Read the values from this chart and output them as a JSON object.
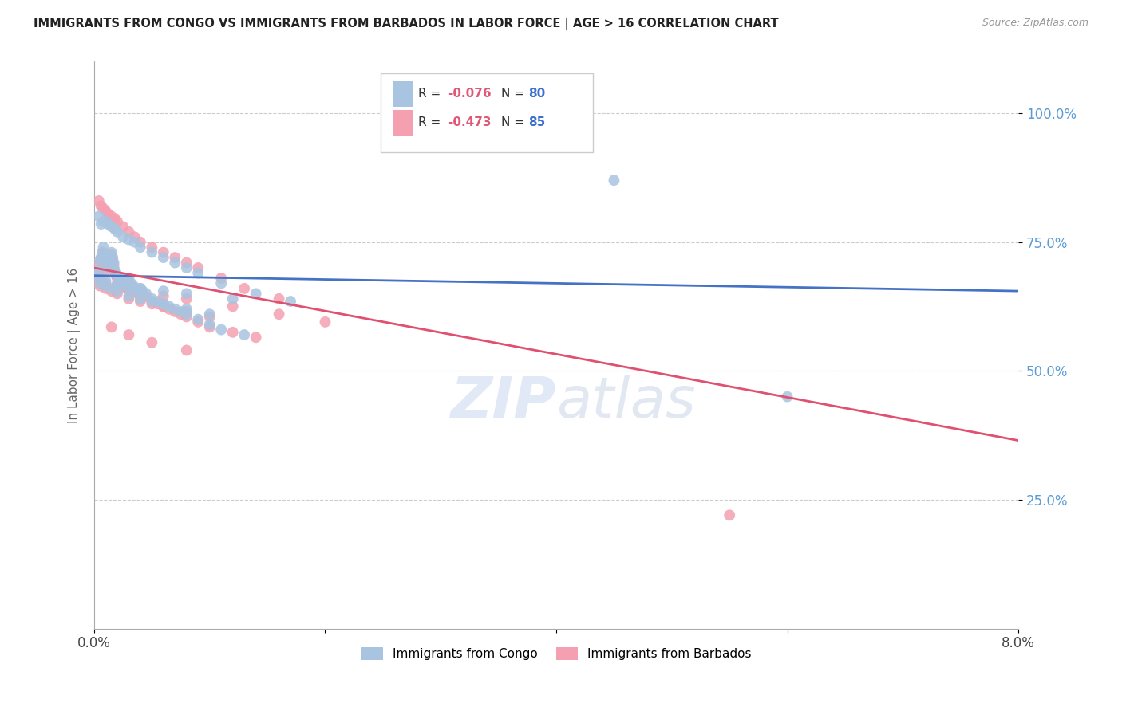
{
  "title": "IMMIGRANTS FROM CONGO VS IMMIGRANTS FROM BARBADOS IN LABOR FORCE | AGE > 16 CORRELATION CHART",
  "source": "Source: ZipAtlas.com",
  "ylabel": "In Labor Force | Age > 16",
  "yaxis_labels": [
    "25.0%",
    "50.0%",
    "75.0%",
    "100.0%"
  ],
  "yaxis_values": [
    0.25,
    0.5,
    0.75,
    1.0
  ],
  "xlim": [
    0.0,
    0.08
  ],
  "ylim": [
    0.0,
    1.1
  ],
  "congo_R": -0.076,
  "congo_N": 80,
  "barbados_R": -0.473,
  "barbados_N": 85,
  "congo_color": "#a8c4e0",
  "barbados_color": "#f4a0b0",
  "congo_line_color": "#4472c4",
  "barbados_line_color": "#e05070",
  "watermark_zip": "ZIP",
  "watermark_atlas": "atlas",
  "legend_label_congo": "Immigrants from Congo",
  "legend_label_barbados": "Immigrants from Barbados",
  "congo_line_x0": 0.0,
  "congo_line_x1": 0.08,
  "congo_line_y0": 0.685,
  "congo_line_y1": 0.655,
  "barbados_line_x0": 0.0,
  "barbados_line_x1": 0.08,
  "barbados_line_y0": 0.7,
  "barbados_line_y1": 0.365,
  "congo_x": [
    0.0003,
    0.0005,
    0.0006,
    0.0007,
    0.0008,
    0.0009,
    0.001,
    0.0011,
    0.0012,
    0.0013,
    0.0014,
    0.0015,
    0.0016,
    0.0017,
    0.0018,
    0.0019,
    0.002,
    0.0022,
    0.0024,
    0.0026,
    0.0028,
    0.003,
    0.0032,
    0.0034,
    0.0036,
    0.0038,
    0.004,
    0.0042,
    0.0045,
    0.005,
    0.0055,
    0.006,
    0.0065,
    0.007,
    0.0075,
    0.008,
    0.009,
    0.01,
    0.011,
    0.013,
    0.0004,
    0.0006,
    0.0008,
    0.001,
    0.0012,
    0.0015,
    0.0018,
    0.002,
    0.0025,
    0.003,
    0.0035,
    0.004,
    0.005,
    0.006,
    0.007,
    0.008,
    0.009,
    0.011,
    0.014,
    0.017,
    0.0005,
    0.001,
    0.0015,
    0.002,
    0.003,
    0.004,
    0.005,
    0.006,
    0.008,
    0.01,
    0.0005,
    0.001,
    0.002,
    0.003,
    0.004,
    0.006,
    0.008,
    0.012,
    0.045,
    0.06
  ],
  "congo_y": [
    0.695,
    0.715,
    0.72,
    0.73,
    0.74,
    0.72,
    0.7,
    0.725,
    0.715,
    0.71,
    0.705,
    0.73,
    0.72,
    0.71,
    0.695,
    0.69,
    0.685,
    0.68,
    0.675,
    0.67,
    0.665,
    0.68,
    0.67,
    0.665,
    0.66,
    0.655,
    0.66,
    0.655,
    0.65,
    0.64,
    0.635,
    0.63,
    0.625,
    0.62,
    0.615,
    0.61,
    0.6,
    0.59,
    0.58,
    0.57,
    0.8,
    0.785,
    0.79,
    0.79,
    0.785,
    0.78,
    0.775,
    0.77,
    0.76,
    0.755,
    0.75,
    0.74,
    0.73,
    0.72,
    0.71,
    0.7,
    0.69,
    0.67,
    0.65,
    0.635,
    0.67,
    0.665,
    0.66,
    0.655,
    0.645,
    0.64,
    0.635,
    0.63,
    0.62,
    0.61,
    0.68,
    0.675,
    0.67,
    0.665,
    0.66,
    0.655,
    0.65,
    0.64,
    0.87,
    0.45
  ],
  "barbados_x": [
    0.0003,
    0.0005,
    0.0006,
    0.0007,
    0.0008,
    0.0009,
    0.001,
    0.0011,
    0.0012,
    0.0013,
    0.0014,
    0.0015,
    0.0016,
    0.0017,
    0.0018,
    0.0019,
    0.002,
    0.0022,
    0.0024,
    0.0026,
    0.0028,
    0.003,
    0.0032,
    0.0034,
    0.0036,
    0.0038,
    0.004,
    0.0042,
    0.0045,
    0.005,
    0.0055,
    0.006,
    0.0065,
    0.007,
    0.0075,
    0.008,
    0.009,
    0.01,
    0.012,
    0.014,
    0.0004,
    0.0006,
    0.0008,
    0.001,
    0.0012,
    0.0015,
    0.0018,
    0.002,
    0.0025,
    0.003,
    0.0035,
    0.004,
    0.005,
    0.006,
    0.007,
    0.008,
    0.009,
    0.011,
    0.013,
    0.016,
    0.0005,
    0.001,
    0.0015,
    0.002,
    0.003,
    0.004,
    0.005,
    0.006,
    0.008,
    0.01,
    0.0005,
    0.001,
    0.002,
    0.003,
    0.004,
    0.006,
    0.008,
    0.012,
    0.016,
    0.02,
    0.0015,
    0.003,
    0.005,
    0.008,
    0.055
  ],
  "barbados_y": [
    0.69,
    0.71,
    0.715,
    0.72,
    0.73,
    0.715,
    0.695,
    0.715,
    0.71,
    0.705,
    0.7,
    0.725,
    0.715,
    0.705,
    0.69,
    0.685,
    0.68,
    0.675,
    0.67,
    0.665,
    0.66,
    0.675,
    0.665,
    0.66,
    0.655,
    0.65,
    0.655,
    0.65,
    0.645,
    0.635,
    0.63,
    0.625,
    0.62,
    0.615,
    0.61,
    0.605,
    0.595,
    0.585,
    0.575,
    0.565,
    0.83,
    0.82,
    0.815,
    0.81,
    0.805,
    0.8,
    0.795,
    0.79,
    0.78,
    0.77,
    0.76,
    0.75,
    0.74,
    0.73,
    0.72,
    0.71,
    0.7,
    0.68,
    0.66,
    0.64,
    0.665,
    0.66,
    0.655,
    0.65,
    0.64,
    0.635,
    0.63,
    0.625,
    0.615,
    0.605,
    0.675,
    0.67,
    0.665,
    0.66,
    0.655,
    0.645,
    0.64,
    0.625,
    0.61,
    0.595,
    0.585,
    0.57,
    0.555,
    0.54,
    0.22
  ]
}
